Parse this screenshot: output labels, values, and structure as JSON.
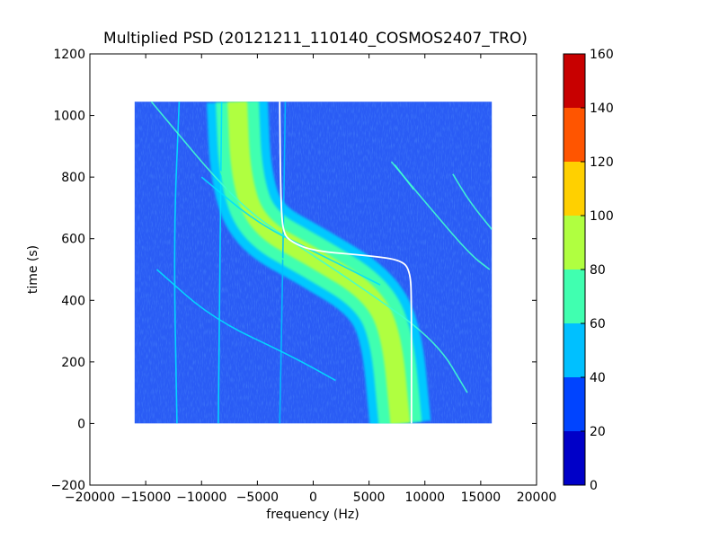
{
  "chart_data": {
    "type": "heatmap",
    "title": "Multiplied PSD (20121211_110140_COSMOS2407_TRO)",
    "xlabel": "frequency (Hz)",
    "ylabel": "time (s)",
    "xlim": [
      -20000,
      20000
    ],
    "ylim": [
      -200,
      1200
    ],
    "x_ticks": [
      -20000,
      -15000,
      -10000,
      -5000,
      0,
      5000,
      10000,
      15000,
      20000
    ],
    "x_tick_labels": [
      "−20000",
      "−15000",
      "−10000",
      "−5000",
      "0",
      "5000",
      "10000",
      "15000",
      "20000"
    ],
    "y_ticks": [
      -200,
      0,
      200,
      400,
      600,
      800,
      1000,
      1200
    ],
    "y_tick_labels": [
      "−200",
      "0",
      "200",
      "400",
      "600",
      "800",
      "1000",
      "1200"
    ],
    "data_extent": {
      "x": [
        -16000,
        16000
      ],
      "y": [
        0,
        1045
      ]
    },
    "grid": false,
    "colorbar": {
      "levels": [
        0,
        20,
        40,
        60,
        80,
        100,
        120,
        140,
        160
      ],
      "tick_labels": [
        "0",
        "20",
        "40",
        "60",
        "80",
        "100",
        "120",
        "140",
        "160"
      ],
      "colors": [
        "#0000c8",
        "#0044ff",
        "#00c0ff",
        "#40ffb0",
        "#b0ff40",
        "#ffd000",
        "#ff5500",
        "#c80000"
      ]
    },
    "background_level_color": "#2a5cf5",
    "main_band": {
      "points": [
        [
          7800,
          0
        ],
        [
          7000,
          300
        ],
        [
          5000,
          430
        ],
        [
          0,
          540
        ],
        [
          -5000,
          640
        ],
        [
          -6500,
          800
        ],
        [
          -6800,
          1045
        ]
      ],
      "color_outer": "#00c8ff",
      "color_mid": "#40ffb0",
      "color_core": "#b0ff40"
    },
    "tracks": [
      {
        "points": [
          [
            -12200,
            0
          ],
          [
            -12500,
            600
          ],
          [
            -12000,
            1045
          ]
        ],
        "color": "#00e0ff"
      },
      {
        "points": [
          [
            -8500,
            0
          ],
          [
            -8300,
            700
          ],
          [
            -8200,
            1045
          ]
        ],
        "color": "#00e0ff"
      },
      {
        "points": [
          [
            -3000,
            0
          ],
          [
            -2700,
            550
          ],
          [
            -2500,
            1045
          ]
        ],
        "color": "#00c0ff"
      },
      {
        "points": [
          [
            -14500,
            1045
          ],
          [
            -7000,
            720
          ],
          [
            -1500,
            580
          ],
          [
            4000,
            450
          ],
          [
            11000,
            270
          ],
          [
            13800,
            100
          ]
        ],
        "color": "#40ffd0"
      },
      {
        "points": [
          [
            -8300,
            820
          ],
          [
            -6000,
            600
          ],
          [
            0,
            480
          ]
        ],
        "color": "#40ffb0"
      },
      {
        "points": [
          [
            -10000,
            800
          ],
          [
            -5000,
            650
          ],
          [
            0,
            560
          ],
          [
            6000,
            450
          ]
        ],
        "color": "#00e0ff"
      },
      {
        "points": [
          [
            -14000,
            500
          ],
          [
            -9000,
            340
          ],
          [
            -2000,
            220
          ],
          [
            2000,
            140
          ]
        ],
        "color": "#00e0ff"
      },
      {
        "points": [
          [
            7000,
            850
          ],
          [
            10000,
            720
          ],
          [
            14000,
            550
          ],
          [
            15800,
            500
          ]
        ],
        "color": "#40ffd0"
      },
      {
        "points": [
          [
            7300,
            840
          ],
          [
            9000,
            760
          ]
        ],
        "color": "#40ffd0"
      },
      {
        "points": [
          [
            12500,
            810
          ],
          [
            14000,
            720
          ],
          [
            16000,
            630
          ]
        ],
        "color": "#40ffd0"
      }
    ],
    "doppler_curve": {
      "points": [
        [
          -3000,
          1045
        ],
        [
          -3000,
          1000
        ],
        [
          -2900,
          720
        ],
        [
          -2700,
          620
        ],
        [
          -2000,
          590
        ],
        [
          0,
          560
        ],
        [
          5000,
          545
        ],
        [
          8000,
          530
        ],
        [
          8700,
          490
        ],
        [
          8800,
          400
        ],
        [
          8800,
          0
        ]
      ],
      "color": "#ffffff"
    }
  }
}
